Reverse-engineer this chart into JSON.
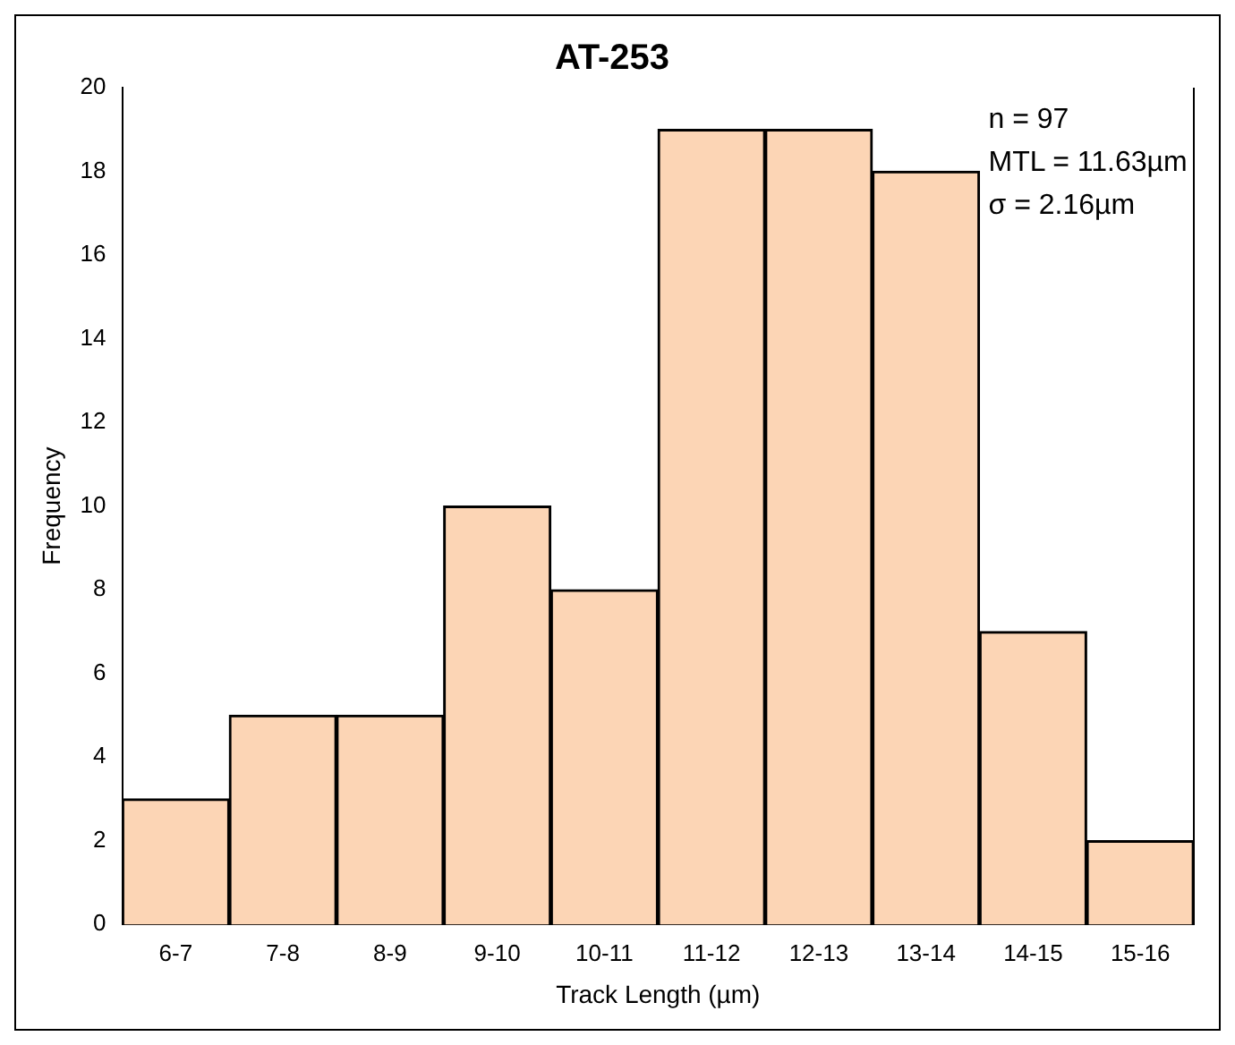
{
  "chart_data": {
    "type": "bar",
    "title": "AT-253",
    "xlabel": "Track Length (µm)",
    "ylabel": "Frequency",
    "categories": [
      "6-7",
      "7-8",
      "8-9",
      "9-10",
      "10-11",
      "11-12",
      "12-13",
      "13-14",
      "14-15",
      "15-16"
    ],
    "values": [
      3,
      5,
      5,
      10,
      8,
      19,
      19,
      18,
      7,
      2
    ],
    "color": "#fcd5b5",
    "ylim": [
      0,
      20
    ],
    "yticks": [
      0,
      2,
      4,
      6,
      8,
      10,
      12,
      14,
      16,
      18,
      20
    ],
    "grid": false,
    "legend": false,
    "annotations": [
      "n = 97",
      "MTL = 11.63µm",
      "σ = 2.16µm"
    ]
  }
}
